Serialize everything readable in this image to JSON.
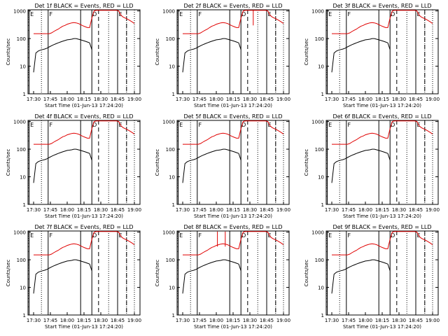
{
  "chart_data": {
    "type": "line",
    "layout": "3x3 grid",
    "common": {
      "xlabel": "Start Time (01-Jun-13 17:24:20)",
      "ylabel": "Counts/sec",
      "x_ticks": [
        "17:30",
        "17:45",
        "18:00",
        "18:15",
        "18:30",
        "18:45",
        "19:00"
      ],
      "x_tick_minutes": [
        0,
        15,
        30,
        45,
        60,
        75,
        90
      ],
      "xlim_minutes": [
        -5,
        95
      ],
      "y_ticks": [
        "1",
        "10",
        "100",
        "1000"
      ],
      "y_tick_values": [
        1,
        10,
        100,
        1000
      ],
      "ylim": [
        1,
        1100
      ],
      "yscale": "log",
      "series_colors": {
        "events": "#000000",
        "lld": "#e00000"
      },
      "x_minutes_reference": "17:30",
      "markers": {
        "E_left": {
          "x": -4,
          "label": "E",
          "style": "solid"
        },
        "F": {
          "x": 13,
          "label": "F",
          "style": "solid"
        },
        "F_end": {
          "x": 42,
          "style": "solid"
        },
        "D": {
          "x": 52,
          "label": "D",
          "style": "solid"
        },
        "E_right": {
          "x": 75,
          "label": "E",
          "style": "solid"
        },
        "dotted": [
          7,
          67,
          83,
          90
        ],
        "dashed": [
          58,
          83
        ]
      }
    },
    "panels": [
      {
        "title": "Det 1f BLACK = Events, RED = LLD",
        "lld_spikes": []
      },
      {
        "title": "Det 2f BLACK = Events, RED = LLD",
        "lld_spikes": [
          63
        ]
      },
      {
        "title": "Det 3f BLACK = Events, RED = LLD",
        "lld_spikes": []
      },
      {
        "title": "Det 4f BLACK = Events, RED = LLD",
        "lld_spikes": []
      },
      {
        "title": "Det 5f BLACK = Events, RED = LLD",
        "lld_spikes": []
      },
      {
        "title": "Det 6f BLACK = Events, RED = LLD",
        "lld_spikes": []
      },
      {
        "title": "Det 7f BLACK = Events, RED = LLD",
        "lld_spikes": []
      },
      {
        "title": "Det 8f BLACK = Events, RED = LLD",
        "lld_spikes": [
          31,
          38
        ]
      },
      {
        "title": "Det 9f BLACK = Events, RED = LLD",
        "lld_spikes": []
      }
    ],
    "series": [
      {
        "name": "Events",
        "x": [
          0,
          2,
          4,
          6,
          8,
          10,
          12,
          14,
          16,
          18,
          20,
          22,
          24,
          26,
          28,
          30,
          32,
          34,
          36,
          38,
          40,
          42,
          44,
          46,
          48,
          50,
          52
        ],
        "values": [
          6,
          30,
          35,
          38,
          40,
          42,
          45,
          50,
          55,
          60,
          65,
          70,
          75,
          80,
          85,
          90,
          92,
          95,
          100,
          100,
          95,
          90,
          85,
          80,
          75,
          70,
          40
        ]
      },
      {
        "name": "LLD",
        "x": [
          0,
          2,
          4,
          6,
          8,
          10,
          12,
          14,
          16,
          18,
          20,
          22,
          24,
          26,
          28,
          30,
          32,
          34,
          36,
          38,
          40,
          42,
          44,
          46,
          48,
          50,
          52,
          54,
          56,
          58,
          60,
          62,
          64,
          66,
          68,
          70,
          72,
          74,
          76,
          78,
          80,
          82,
          84,
          86,
          88,
          90
        ],
        "values": [
          150,
          150,
          150,
          150,
          150,
          150,
          150,
          150,
          160,
          180,
          200,
          220,
          250,
          280,
          300,
          330,
          350,
          370,
          380,
          370,
          350,
          320,
          290,
          270,
          250,
          250,
          550,
          1000,
          1050,
          1050,
          1050,
          1050,
          1050,
          1050,
          1050,
          1050,
          1050,
          1050,
          1000,
          700,
          600,
          550,
          500,
          450,
          400,
          350
        ]
      }
    ]
  }
}
